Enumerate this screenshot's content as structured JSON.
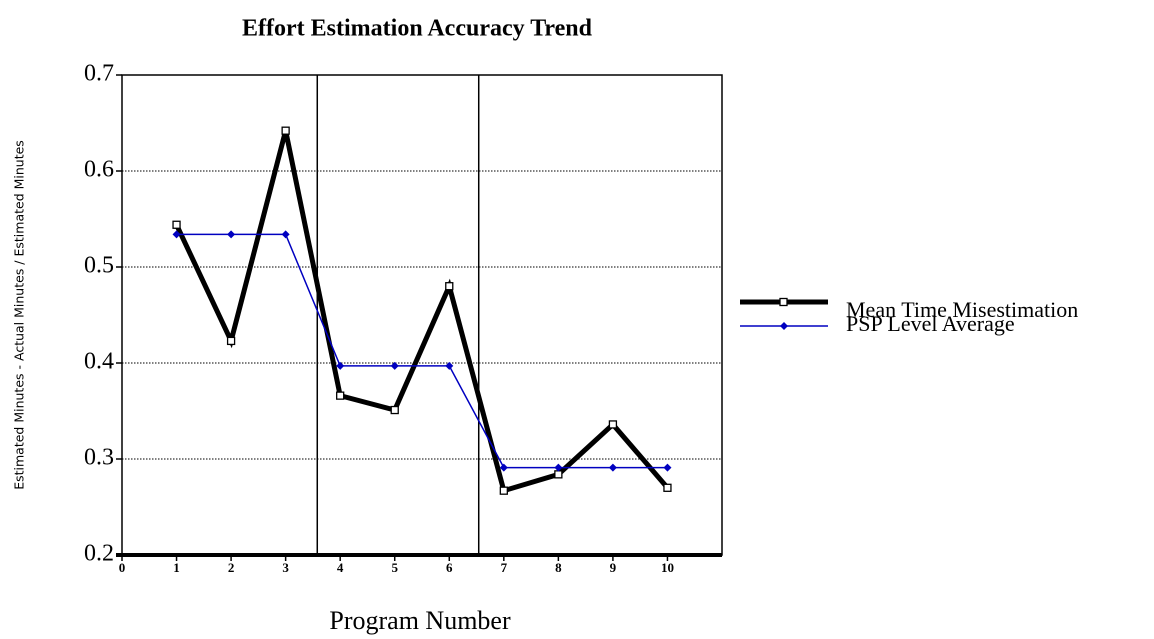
{
  "chart_data": {
    "type": "line",
    "title": "Effort Estimation Accuracy Trend",
    "x_label": "Program Number",
    "y_label": "Estimated Minutes - Actual Minutes / Estimated Minutes",
    "x": [
      1,
      2,
      3,
      4,
      5,
      6,
      7,
      8,
      9,
      10
    ],
    "series": [
      {
        "name": "Mean Time Misestimation",
        "color": "#000000",
        "values": [
          0.544,
          0.423,
          0.642,
          0.366,
          0.351,
          0.48,
          0.267,
          0.284,
          0.336,
          0.27
        ]
      },
      {
        "name": "PSP Level Average",
        "color": "#0000c0",
        "values": [
          0.534,
          0.534,
          0.534,
          0.397,
          0.397,
          0.397,
          0.291,
          0.291,
          0.291,
          0.291
        ]
      }
    ],
    "xlim": [
      0,
      11
    ],
    "xticks": [
      0,
      1,
      2,
      3,
      4,
      5,
      6,
      7,
      8,
      9,
      10
    ],
    "ylim": [
      0.2,
      0.7
    ],
    "yticks": [
      0.2,
      0.3,
      0.4,
      0.5,
      0.6,
      0.7
    ],
    "vlines": [
      3.58,
      6.54
    ],
    "grid": true,
    "legend": "right"
  }
}
